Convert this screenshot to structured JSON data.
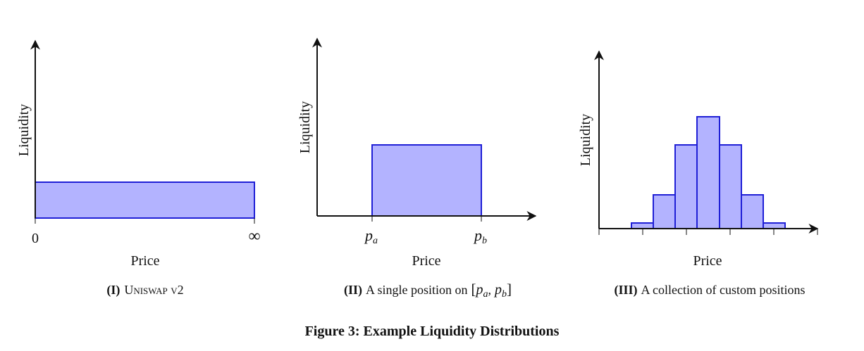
{
  "panels": [
    {
      "y_label": "Liquidity",
      "x_label": "Price",
      "x_tick_labels": [
        "0",
        "∞"
      ],
      "caption": {
        "label": "(I)",
        "text": "Uniswap v2"
      }
    },
    {
      "y_label": "Liquidity",
      "x_label": "Price",
      "x_tick_labels": [
        {
          "base": "p",
          "sub": "a"
        },
        {
          "base": "p",
          "sub": "b"
        }
      ],
      "caption": {
        "label": "(II)",
        "text": "A single position on",
        "open": "[",
        "a": {
          "base": "p",
          "sub": "a"
        },
        "sep": ",",
        "b": {
          "base": "p",
          "sub": "b"
        },
        "close": "]"
      }
    },
    {
      "y_label": "Liquidity",
      "x_label": "Price",
      "caption": {
        "label": "(III)",
        "text": "A collection of custom positions"
      }
    }
  ],
  "figure_caption": "Figure 3: Example Liquidity Distributions"
}
